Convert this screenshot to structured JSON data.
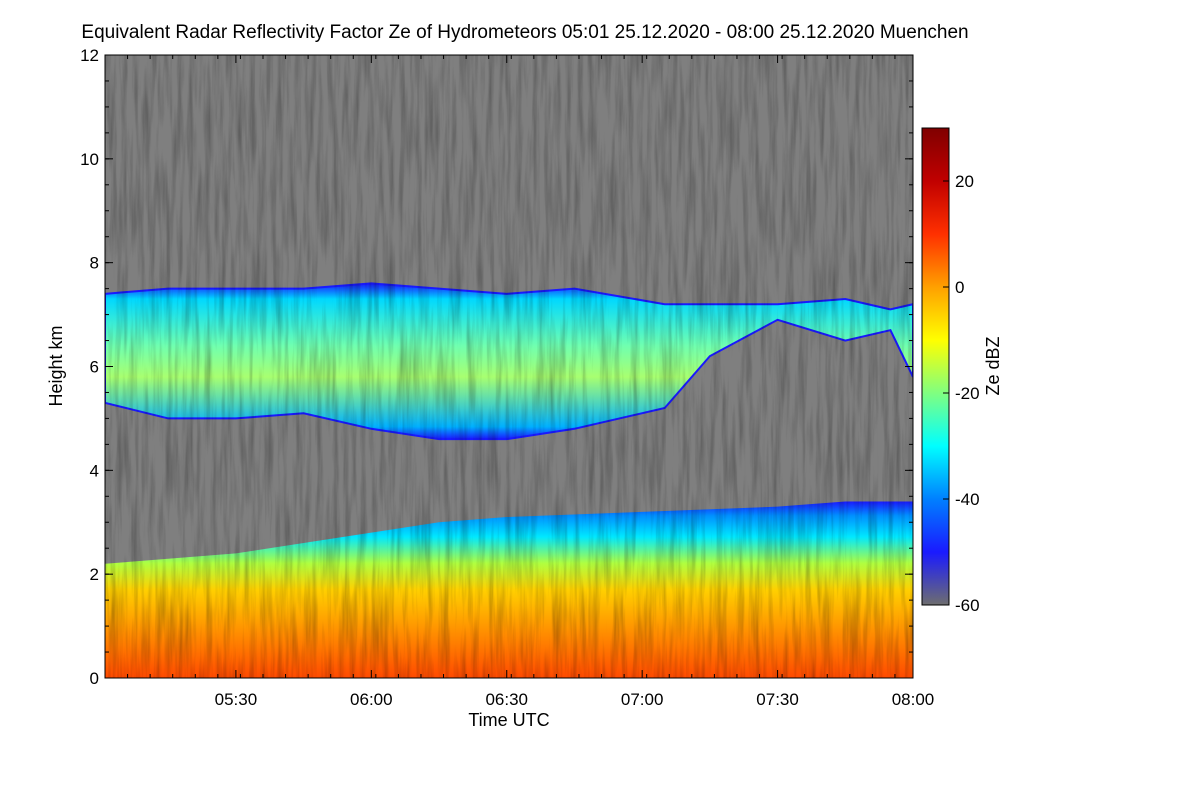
{
  "chart_data": {
    "type": "heatmap",
    "title": "Equivalent Radar Reflectivity Factor Ze of Hydrometeors   05:01 25.12.2020 - 08:00 25.12.2020 Muenchen",
    "xlabel": "Time UTC",
    "ylabel": "Height km",
    "colorbar_label": "Ze dBZ",
    "xlim": [
      "05:01",
      "08:00"
    ],
    "ylim": [
      0,
      12
    ],
    "x_ticks": [
      "05:30",
      "06:00",
      "06:30",
      "07:00",
      "07:30",
      "08:00"
    ],
    "y_ticks": [
      0,
      2,
      4,
      6,
      8,
      10,
      12
    ],
    "colorbar_range": [
      -60,
      30
    ],
    "colorbar_ticks": [
      20,
      0,
      -20,
      -40,
      -60
    ],
    "colorbar_stops": [
      "#6e6e6e",
      "#1a1aff",
      "#0080ff",
      "#00ffff",
      "#80ff80",
      "#ffff00",
      "#ffa000",
      "#ff3000",
      "#c00000",
      "#800000"
    ],
    "background_color": "#7f7f7f",
    "layers": [
      {
        "name": "upper cloud layer",
        "top_km": [
          7.4,
          7.5,
          7.5,
          7.5,
          7.6,
          7.5,
          7.4,
          7.5,
          7.2,
          7.2,
          7.2,
          7.3,
          7.1,
          7.2
        ],
        "base_km": [
          5.3,
          5.0,
          5.0,
          5.1,
          4.8,
          4.6,
          4.6,
          4.8,
          5.2,
          6.2,
          6.9,
          6.5,
          6.7,
          5.8
        ],
        "time": [
          "05:01",
          "05:15",
          "05:30",
          "05:45",
          "06:00",
          "06:15",
          "06:30",
          "06:45",
          "07:05",
          "07:15",
          "07:30",
          "07:45",
          "07:55",
          "08:00"
        ],
        "typical_ze_dbz": [
          -25,
          -10
        ]
      },
      {
        "name": "precipitation layer",
        "top_km": [
          2.2,
          2.4,
          2.6,
          2.8,
          3.0,
          3.1,
          3.2,
          3.3,
          3.4,
          3.4
        ],
        "time": [
          "05:01",
          "05:30",
          "05:45",
          "06:00",
          "06:15",
          "06:30",
          "07:00",
          "07:30",
          "07:45",
          "08:00"
        ],
        "typical_ze_dbz": [
          -30,
          25
        ]
      }
    ]
  }
}
